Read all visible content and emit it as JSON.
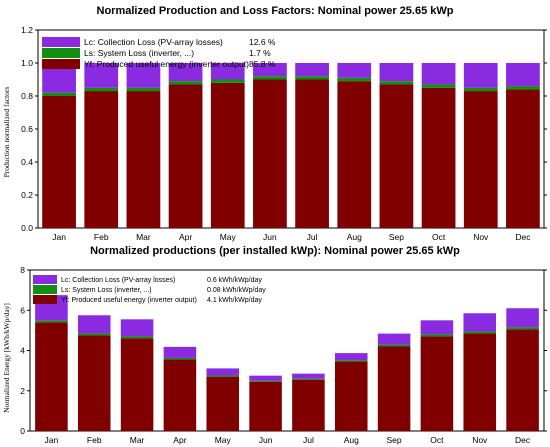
{
  "chart_data": [
    {
      "type": "bar",
      "stacked": true,
      "title": "Normalized Production and Loss Factors:  Nominal power 25.65 kWp",
      "ylabel": "Production normalized factors",
      "xlabel": "",
      "categories": [
        "Jan",
        "Feb",
        "Mar",
        "Apr",
        "May",
        "Jun",
        "Jul",
        "Aug",
        "Sep",
        "Oct",
        "Nov",
        "Dec"
      ],
      "ylim": [
        0,
        1.2
      ],
      "yticks": [
        "0.0",
        "0.2",
        "0.4",
        "0.6",
        "0.8",
        "1.0",
        "1.2"
      ],
      "legend_position": "top-left",
      "series": [
        {
          "name": "Yf: Produced useful energy  (inverter output)",
          "value_text": "85.8 %",
          "color": "#800000",
          "values": [
            0.8,
            0.83,
            0.83,
            0.87,
            0.88,
            0.9,
            0.9,
            0.89,
            0.87,
            0.85,
            0.83,
            0.84
          ]
        },
        {
          "name": "Ls: System Loss  (inverter, ...)",
          "value_text": "1.7 %",
          "color": "#109010",
          "values": [
            0.02,
            0.02,
            0.02,
            0.02,
            0.02,
            0.02,
            0.02,
            0.02,
            0.02,
            0.02,
            0.02,
            0.02
          ]
        },
        {
          "name": "Lc: Collection Loss (PV-array losses)",
          "value_text": "12.6 %",
          "color": "#8a2be2",
          "values": [
            0.18,
            0.15,
            0.15,
            0.11,
            0.1,
            0.08,
            0.08,
            0.09,
            0.11,
            0.13,
            0.15,
            0.14
          ]
        }
      ]
    },
    {
      "type": "bar",
      "stacked": true,
      "title": "Normalized productions (per installed kWp):  Nominal power 25.65 kWp",
      "ylabel": "Normalized Energy [kWh/kWp/day]",
      "xlabel": "",
      "categories": [
        "Jan",
        "Feb",
        "Mar",
        "Apr",
        "May",
        "Jun",
        "Jul",
        "Aug",
        "Sep",
        "Oct",
        "Nov",
        "Dec"
      ],
      "ylim": [
        0,
        8
      ],
      "yticks": [
        "0",
        "2",
        "4",
        "6",
        "8"
      ],
      "legend_position": "top-left",
      "series": [
        {
          "name": "Yf: Produced useful energy  (inverter output)",
          "value_text": "4.1 kWh/kWp/day",
          "color": "#800000",
          "values": [
            5.4,
            4.75,
            4.6,
            3.55,
            2.7,
            2.45,
            2.55,
            3.45,
            4.2,
            4.7,
            4.85,
            5.05
          ]
        },
        {
          "name": "Ls: System Loss  (inverter, ...)",
          "value_text": "0.08 kWh/kWp/day",
          "color": "#109010",
          "values": [
            0.1,
            0.1,
            0.1,
            0.08,
            0.06,
            0.05,
            0.05,
            0.07,
            0.09,
            0.1,
            0.1,
            0.1
          ]
        },
        {
          "name": "Lc: Collection Loss (PV-array losses)",
          "value_text": "0.6 kWh/kWp/day",
          "color": "#8a2be2",
          "values": [
            1.25,
            0.9,
            0.85,
            0.55,
            0.35,
            0.25,
            0.25,
            0.35,
            0.55,
            0.7,
            0.9,
            0.95
          ]
        }
      ]
    }
  ]
}
